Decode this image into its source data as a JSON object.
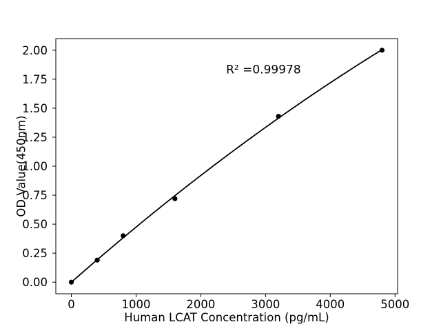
{
  "figure": {
    "background": "#ffffff"
  },
  "chart_data": {
    "type": "line",
    "title": "",
    "xlabel": "Human LCAT Concentration (pg/mL)",
    "ylabel": "OD Value(450nm)",
    "x": [
      0,
      400,
      800,
      1600,
      3200,
      4800
    ],
    "y": [
      0.0,
      0.19,
      0.4,
      0.72,
      1.43,
      2.0
    ],
    "fit": "quadratic",
    "marker": "o",
    "grid": false,
    "legend": null,
    "xlim": [
      -240,
      5040
    ],
    "ylim": [
      -0.1,
      2.1
    ],
    "xticks": [
      0,
      1000,
      2000,
      3000,
      4000,
      5000
    ],
    "xtick_labels": [
      "0",
      "1000",
      "2000",
      "3000",
      "4000",
      "5000"
    ],
    "yticks": [
      0.0,
      0.25,
      0.5,
      0.75,
      1.0,
      1.25,
      1.5,
      1.75,
      2.0
    ],
    "ytick_labels": [
      "0.00",
      "0.25",
      "0.50",
      "0.75",
      "1.00",
      "1.25",
      "1.50",
      "1.75",
      "2.00"
    ],
    "annotation": {
      "text": "R² =0.99978",
      "x": 2390,
      "y": 1.8
    },
    "line_color": "#000000",
    "marker_color": "#000000",
    "axis_color": "#000000",
    "text_color": "#000000"
  }
}
